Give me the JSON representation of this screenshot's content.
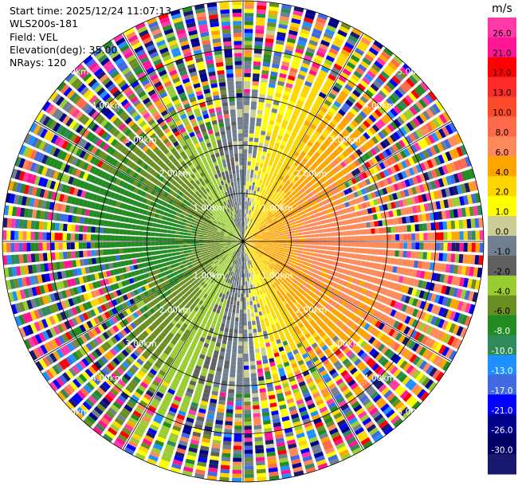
{
  "info": {
    "start_time": "Start time: 2025/12/24 11:07:13",
    "station": "WLS200s-181",
    "field": "Field: VEL",
    "elevation": "Elevation(deg): 35.00",
    "nrays": "NRays: 120"
  },
  "colorbar": {
    "unit": "m/s",
    "ticks": [
      "26.0",
      "21.0",
      "17.0",
      "13.0",
      "10.0",
      "8.0",
      "6.0",
      "4.0",
      "2.0",
      "1.0",
      "0.0",
      "-1.0",
      "-2.0",
      "-4.0",
      "-6.0",
      "-8.0",
      "-10.0",
      "-13.0",
      "-17.0",
      "-21.0",
      "-26.0",
      "-30.0"
    ],
    "colors": [
      "#ff3aa8",
      "#ff1493",
      "#ff0000",
      "#ff2a2a",
      "#ff4a2a",
      "#ff6a4a",
      "#ff8a5a",
      "#ffa500",
      "#ffd700",
      "#ffff00",
      "#cccc99",
      "#708090",
      "#606060",
      "#9acd32",
      "#6b8e23",
      "#228b22",
      "#2e8b57",
      "#1e90ff",
      "#4169e1",
      "#0000ff",
      "#00008b",
      "#000066",
      "#191970"
    ]
  },
  "chart_data": {
    "type": "ppi",
    "rays": 120,
    "max_range_km": 5.0,
    "ring_labels": [
      "1.00km",
      "2.00km",
      "3.00km",
      "4.00km",
      "5.00km"
    ],
    "ring_ranges_km": [
      1,
      2,
      3,
      4,
      5
    ],
    "spoke_angles_deg": [
      0,
      30,
      60,
      90,
      120,
      150,
      180,
      210,
      240,
      270,
      300,
      330
    ],
    "velocity_pattern": {
      "positive_azimuth_deg": 90,
      "max_speed_ms": 7.0,
      "noise_start_km": 2.9
    }
  }
}
